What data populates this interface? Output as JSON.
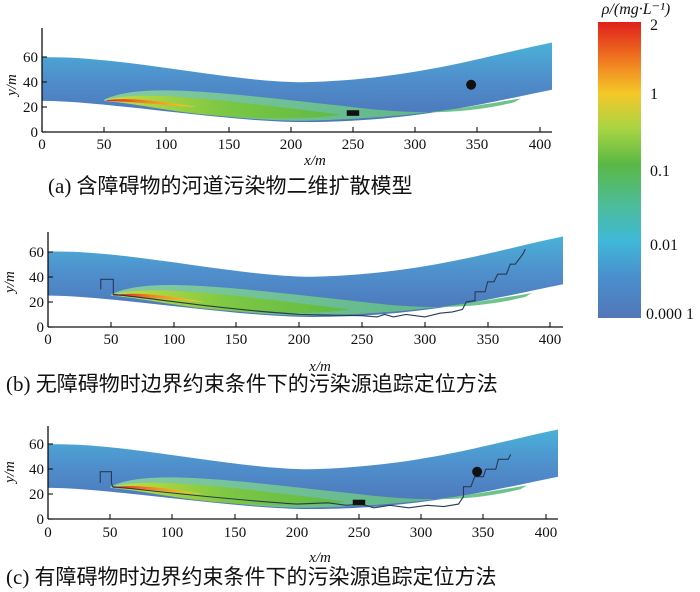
{
  "panels": [
    {
      "caption": "(a) 含障碍物的河道污染物二维扩散模型",
      "xlabel": "x/m",
      "ylabel": "y/m",
      "xticks": [
        "0",
        "50",
        "100",
        "150",
        "200",
        "250",
        "300",
        "350",
        "400"
      ],
      "yticks": [
        "0",
        "20",
        "40",
        "60"
      ],
      "has_obstacle": true,
      "has_source_marker": true,
      "has_trace_boundary": false
    },
    {
      "caption": "(b) 无障碍物时边界约束条件下的污染源追踪定位方法",
      "xlabel": "x/m",
      "ylabel": "y/m",
      "xticks": [
        "0",
        "50",
        "100",
        "150",
        "200",
        "250",
        "300",
        "350",
        "400"
      ],
      "yticks": [
        "0",
        "20",
        "40",
        "60"
      ],
      "has_obstacle": false,
      "has_source_marker": false,
      "has_trace_boundary": true
    },
    {
      "caption": "(c) 有障碍物时边界约束条件下的污染源追踪定位方法",
      "xlabel": "x/m",
      "ylabel": "y/m",
      "xticks": [
        "0",
        "50",
        "100",
        "150",
        "200",
        "250",
        "300",
        "350",
        "400"
      ],
      "yticks": [
        "0",
        "20",
        "40",
        "60"
      ],
      "has_obstacle": true,
      "has_source_marker": true,
      "has_trace_boundary": true
    }
  ],
  "colorbar": {
    "title": "ρ/(mg·L⁻¹)",
    "labels": [
      "2",
      "1",
      "0.1",
      "0.01",
      "0.000 1"
    ],
    "colors": [
      "#e0201c",
      "#f07a20",
      "#f5c828",
      "#a9d443",
      "#5ab845",
      "#4dbc9a",
      "#3fb8d8",
      "#4a8fce",
      "#5277b8"
    ]
  }
}
